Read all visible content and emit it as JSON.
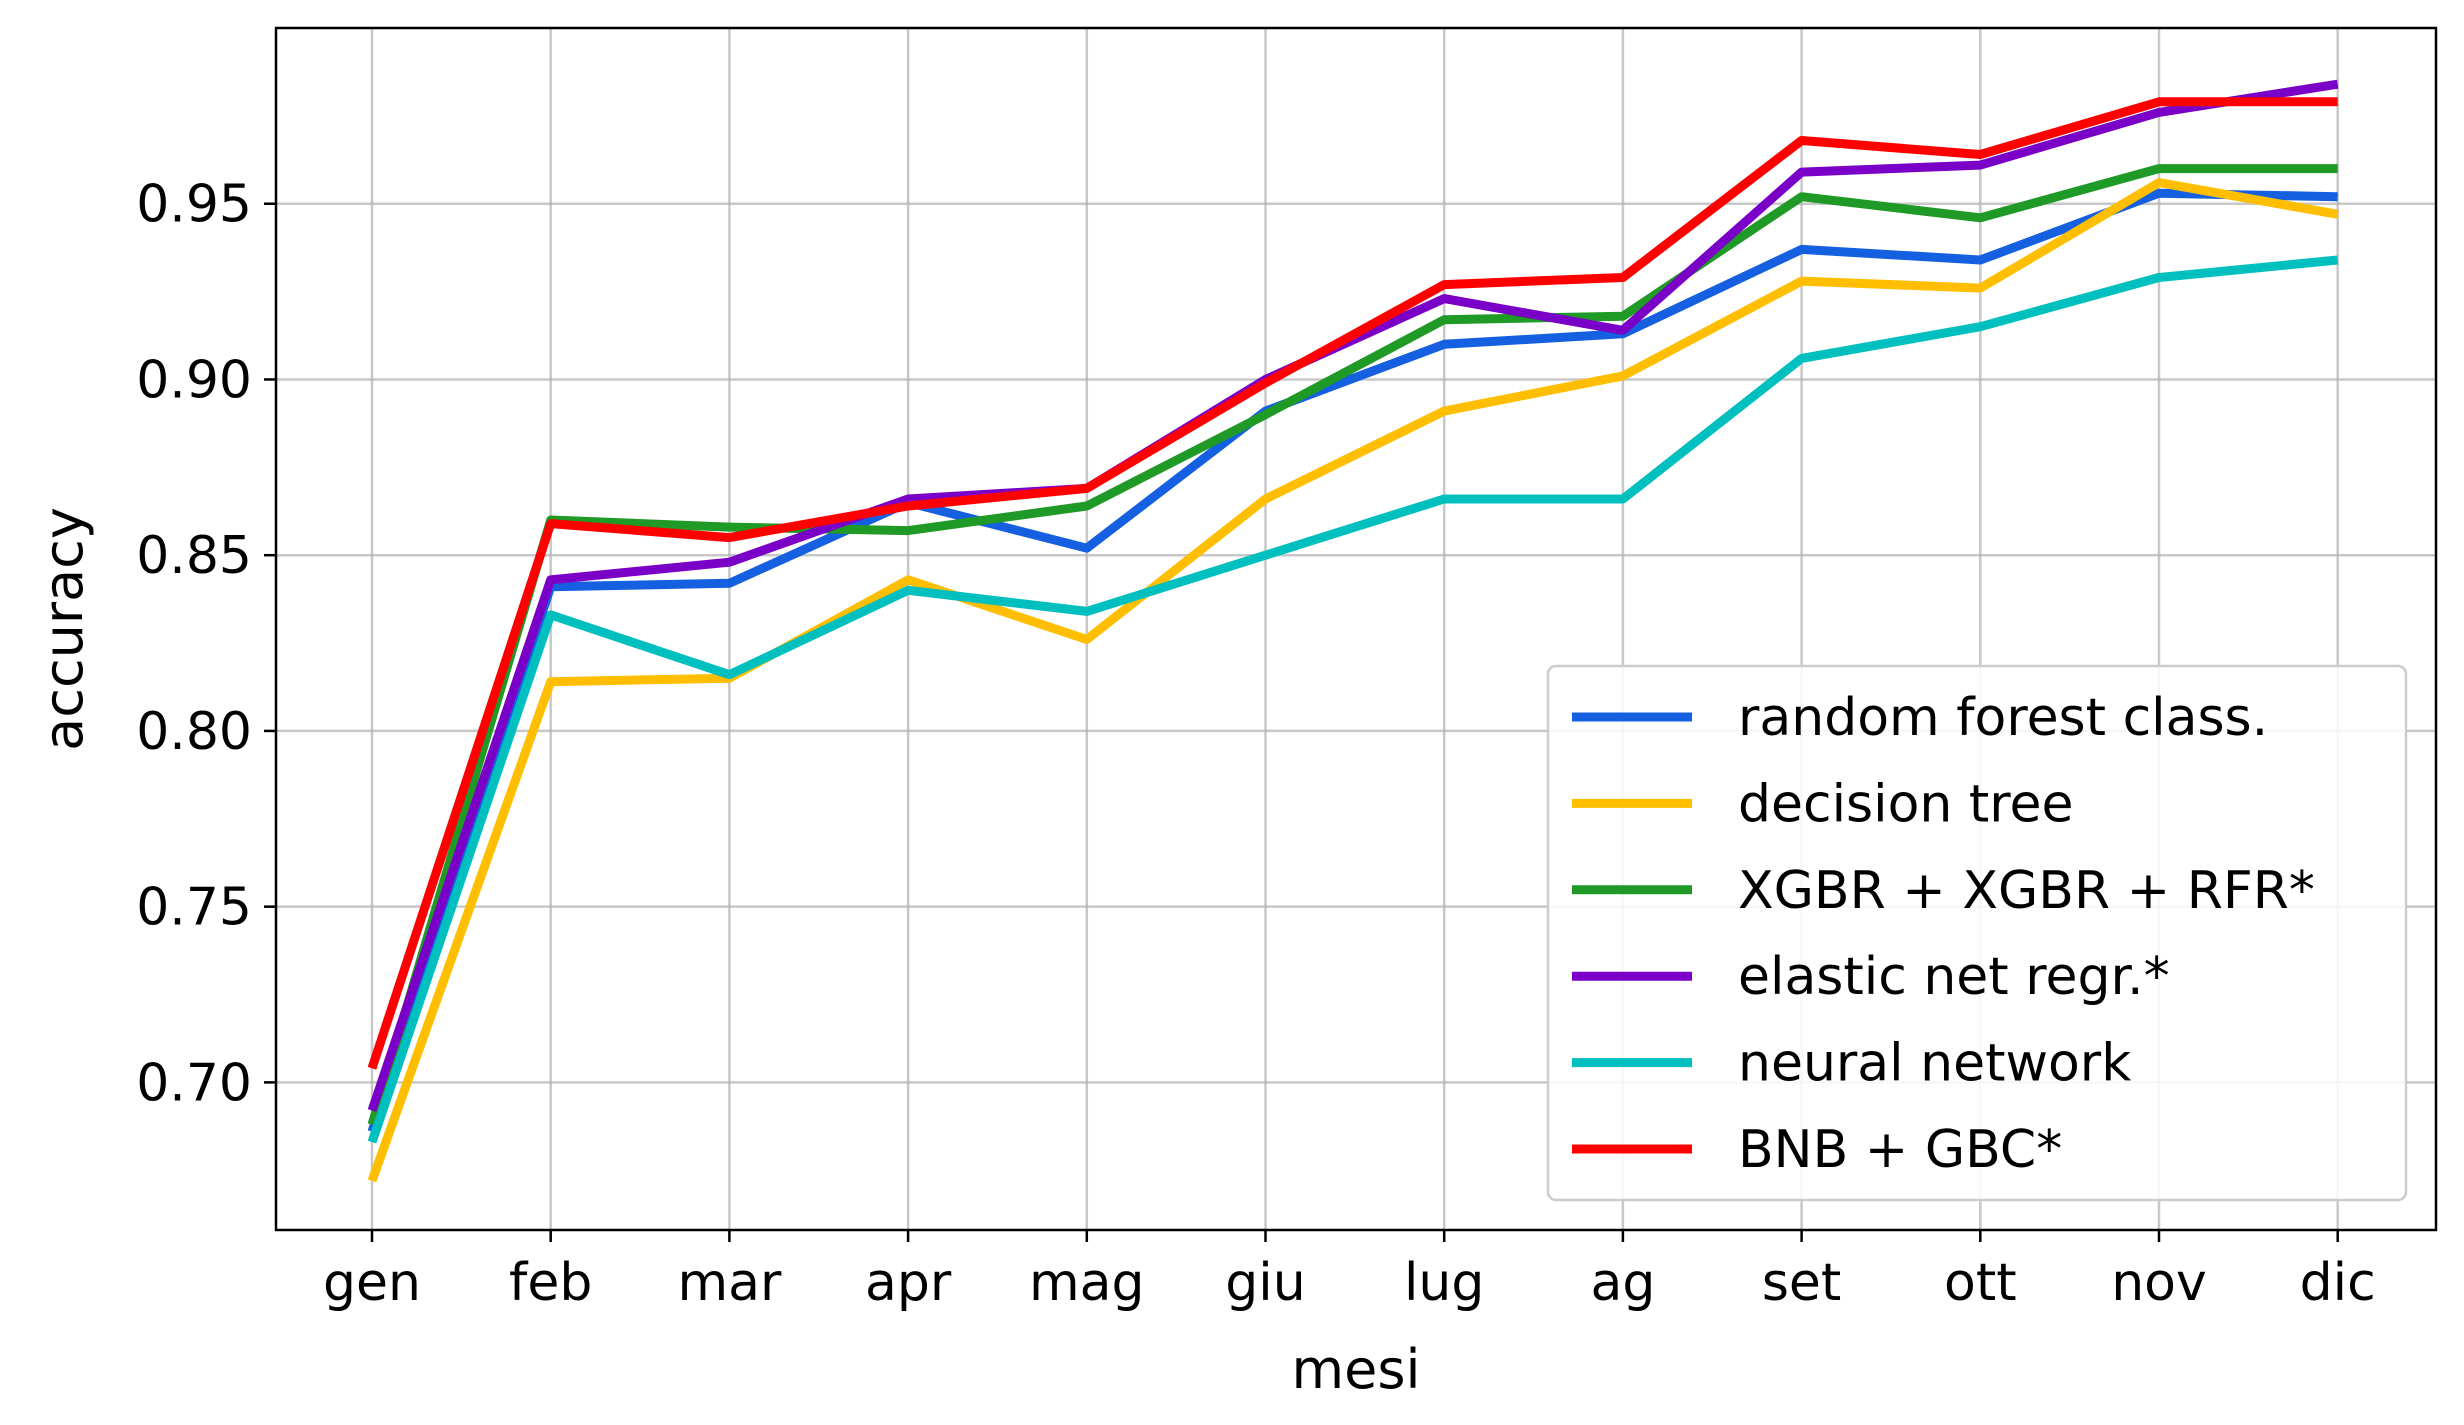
{
  "chart_data": {
    "type": "line",
    "title": "",
    "xlabel": "mesi",
    "ylabel": "accuracy",
    "categories": [
      "gen",
      "feb",
      "mar",
      "apr",
      "mag",
      "giu",
      "lug",
      "ag",
      "set",
      "ott",
      "nov",
      "dic"
    ],
    "ylim": [
      0.658,
      1.0
    ],
    "yticks": [
      0.7,
      0.75,
      0.8,
      0.85,
      0.9,
      0.95
    ],
    "ytick_labels": [
      "0.70",
      "0.75",
      "0.80",
      "0.85",
      "0.90",
      "0.95"
    ],
    "grid": true,
    "legend_position": "bottom-right",
    "series": [
      {
        "name": "random forest class.",
        "color": "#1560e0",
        "values": [
          0.686,
          0.841,
          0.842,
          0.865,
          0.852,
          0.891,
          0.91,
          0.913,
          0.937,
          0.934,
          0.953,
          0.952
        ]
      },
      {
        "name": "decision tree",
        "color": "#ffbf00",
        "values": [
          0.672,
          0.814,
          0.815,
          0.843,
          0.826,
          0.866,
          0.891,
          0.901,
          0.928,
          0.926,
          0.956,
          0.947
        ]
      },
      {
        "name": "XGBR + XGBR + RFR*",
        "color": "#1f9a26",
        "values": [
          0.688,
          0.86,
          0.858,
          0.857,
          0.864,
          0.89,
          0.917,
          0.918,
          0.952,
          0.946,
          0.96,
          0.96
        ]
      },
      {
        "name": "elastic net regr.*",
        "color": "#7b00c7",
        "values": [
          0.692,
          0.843,
          0.848,
          0.866,
          0.869,
          0.9,
          0.923,
          0.914,
          0.959,
          0.961,
          0.976,
          0.984
        ]
      },
      {
        "name": "neural network",
        "color": "#00bfbf",
        "values": [
          0.683,
          0.833,
          0.816,
          0.84,
          0.834,
          0.85,
          0.866,
          0.866,
          0.906,
          0.915,
          0.929,
          0.934
        ]
      },
      {
        "name": "BNB + GBC*",
        "color": "#ff0000",
        "values": [
          0.704,
          0.859,
          0.855,
          0.864,
          0.869,
          0.899,
          0.927,
          0.929,
          0.968,
          0.964,
          0.979,
          0.979
        ]
      }
    ]
  }
}
